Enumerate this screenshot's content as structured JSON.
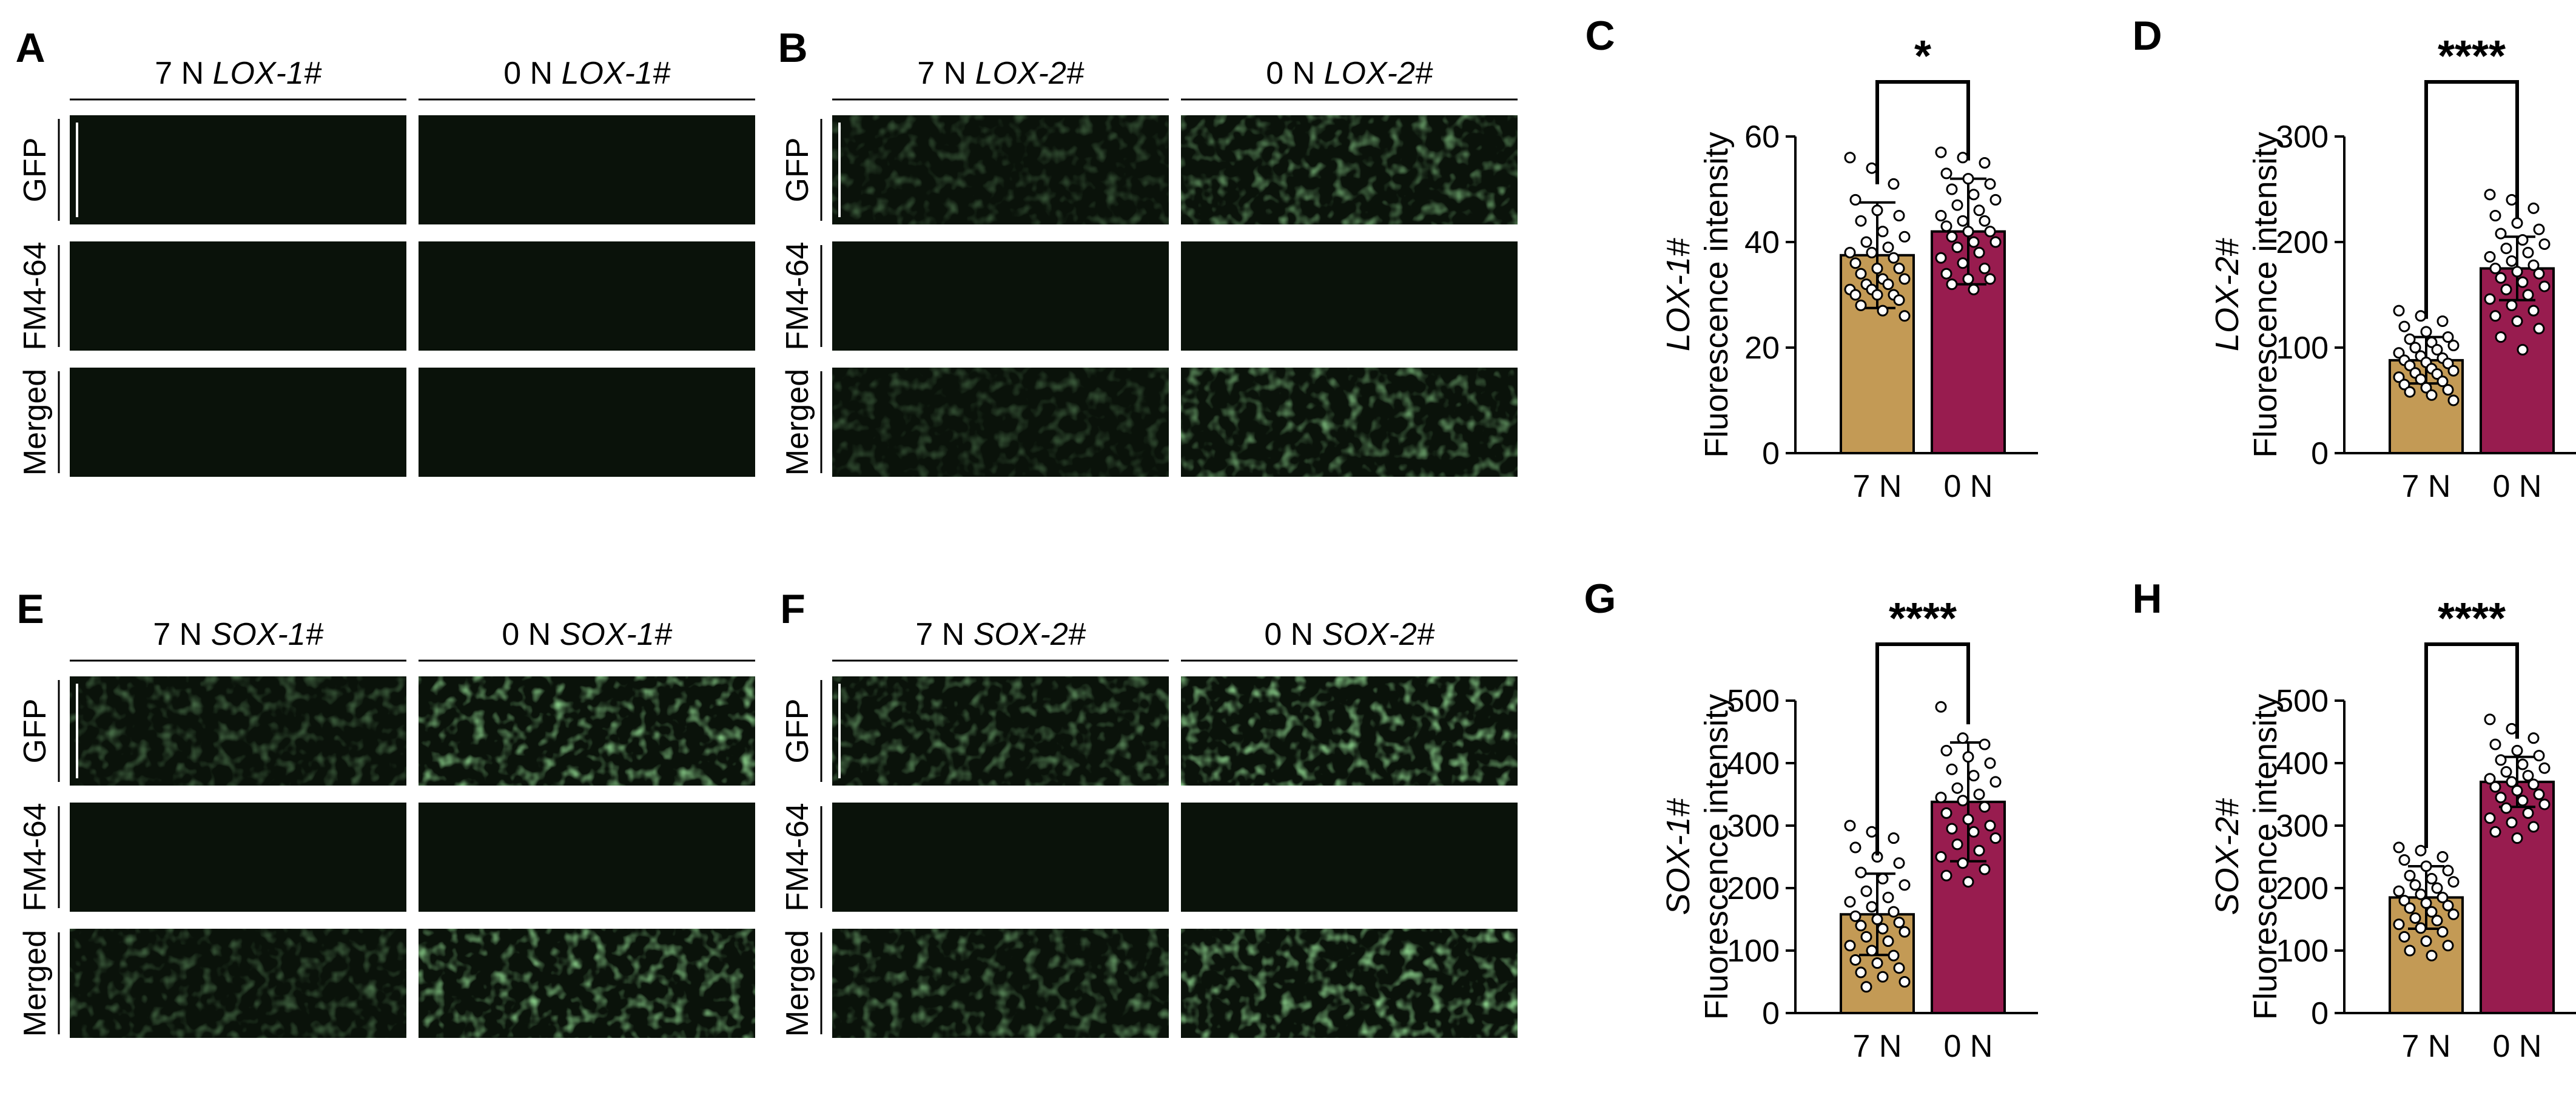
{
  "colors": {
    "bar_7N": "#c39a55",
    "bar_0N": "#981c4f",
    "gfp": "#1f8a3c",
    "gfp_bright": "#7ad43c",
    "fm": "#e0191b",
    "cell_bg": "#0a120a"
  },
  "microscopy": [
    {
      "letter": "A",
      "left": {
        "cond": "7 N",
        "name": "LOX-1#"
      },
      "right": {
        "cond": "0 N",
        "name": "LOX-1#"
      },
      "rows": [
        "GFP",
        "FM4-64",
        "Merged"
      ],
      "gfp_level": [
        0.18,
        0.12
      ],
      "fm_level": [
        0.85,
        0.6
      ]
    },
    {
      "letter": "B",
      "left": {
        "cond": "7 N",
        "name": "LOX-2#"
      },
      "right": {
        "cond": "0 N",
        "name": "LOX-2#"
      },
      "rows": [
        "GFP",
        "FM4-64",
        "Merged"
      ],
      "gfp_level": [
        0.35,
        0.7
      ],
      "fm_level": [
        0.8,
        0.8
      ]
    },
    {
      "letter": "E",
      "left": {
        "cond": "7 N",
        "name": "SOX-1#"
      },
      "right": {
        "cond": "0 N",
        "name": "SOX-1#"
      },
      "rows": [
        "GFP",
        "FM4-64",
        "Merged"
      ],
      "gfp_level": [
        0.45,
        0.9
      ],
      "fm_level": [
        0.35,
        0.85
      ]
    },
    {
      "letter": "F",
      "left": {
        "cond": "7 N",
        "name": "SOX-2#"
      },
      "right": {
        "cond": "0 N",
        "name": "SOX-2#"
      },
      "rows": [
        "GFP",
        "FM4-64",
        "Merged"
      ],
      "gfp_level": [
        0.6,
        1.0
      ],
      "fm_level": [
        0.75,
        0.9
      ]
    }
  ],
  "chart_data": [
    {
      "letter": "C",
      "type": "bar",
      "categories": [
        "7 N",
        "0 N"
      ],
      "values": [
        37.5,
        42
      ],
      "sd": [
        10,
        10
      ],
      "ylim": [
        0,
        60
      ],
      "yticks": [
        0,
        20,
        40,
        60
      ],
      "ylabel_italic": "LOX-1#",
      "ylabel": "Fluorescence intensity",
      "significance": "*",
      "points_7N": [
        56,
        54,
        51,
        48,
        46,
        45,
        44,
        42,
        41,
        40,
        39,
        38,
        38,
        37,
        36,
        35,
        35,
        34,
        33,
        33,
        32,
        32,
        31,
        31,
        30,
        30,
        30,
        29,
        28,
        27,
        26
      ],
      "points_0N": [
        57,
        56,
        55,
        53,
        52,
        51,
        50,
        49,
        48,
        47,
        46,
        45,
        44,
        44,
        43,
        42,
        42,
        41,
        40,
        40,
        39,
        38,
        37,
        36,
        35,
        34,
        33,
        33,
        32,
        31
      ]
    },
    {
      "letter": "D",
      "type": "bar",
      "categories": [
        "7 N",
        "0 N"
      ],
      "values": [
        88,
        175
      ],
      "sd": [
        22,
        30
      ],
      "ylim": [
        0,
        300
      ],
      "yticks": [
        0,
        100,
        200,
        300
      ],
      "ylabel_italic": "LOX-2#",
      "ylabel": "Fluorescence intensity",
      "significance": "****",
      "points_7N": [
        135,
        130,
        125,
        120,
        115,
        110,
        108,
        105,
        102,
        100,
        98,
        95,
        92,
        90,
        88,
        86,
        85,
        83,
        80,
        78,
        76,
        75,
        72,
        70,
        68,
        65,
        62,
        60,
        58,
        55,
        50
      ],
      "points_0N": [
        245,
        240,
        232,
        225,
        218,
        212,
        208,
        202,
        198,
        194,
        190,
        186,
        182,
        178,
        175,
        172,
        170,
        166,
        162,
        158,
        155,
        150,
        146,
        140,
        135,
        130,
        125,
        118,
        110,
        98
      ]
    },
    {
      "letter": "G",
      "type": "bar",
      "categories": [
        "7 N",
        "0 N"
      ],
      "values": [
        158,
        338
      ],
      "sd": [
        65,
        95
      ],
      "ylim": [
        0,
        500
      ],
      "yticks": [
        0,
        100,
        200,
        300,
        400,
        500
      ],
      "ylabel_italic": "SOX-1#",
      "ylabel": "Fluorescence intensity",
      "significance": "****",
      "points_7N": [
        300,
        290,
        280,
        265,
        250,
        240,
        225,
        215,
        205,
        195,
        185,
        178,
        170,
        162,
        155,
        150,
        145,
        140,
        135,
        130,
        122,
        115,
        108,
        100,
        92,
        85,
        80,
        72,
        65,
        58,
        50,
        42
      ],
      "points_0N": [
        490,
        440,
        430,
        420,
        410,
        400,
        390,
        380,
        370,
        360,
        350,
        345,
        340,
        330,
        320,
        310,
        300,
        295,
        290,
        280,
        270,
        260,
        250,
        240,
        230,
        220,
        210
      ]
    },
    {
      "letter": "H",
      "type": "bar",
      "categories": [
        "7 N",
        "0 N"
      ],
      "values": [
        185,
        370
      ],
      "sd": [
        50,
        40
      ],
      "ylim": [
        0,
        500
      ],
      "yticks": [
        0,
        100,
        200,
        300,
        400,
        500
      ],
      "ylabel_italic": "SOX-2#",
      "ylabel": "Fluorescence intensity",
      "significance": "****",
      "points_7N": [
        265,
        260,
        250,
        245,
        235,
        228,
        220,
        215,
        210,
        205,
        200,
        195,
        190,
        185,
        180,
        176,
        172,
        168,
        162,
        158,
        152,
        148,
        142,
        136,
        130,
        122,
        115,
        108,
        100,
        92
      ],
      "points_0N": [
        470,
        455,
        440,
        430,
        420,
        412,
        405,
        398,
        392,
        386,
        380,
        375,
        370,
        366,
        362,
        356,
        350,
        345,
        340,
        334,
        328,
        320,
        312,
        305,
        298,
        290,
        280
      ]
    }
  ]
}
